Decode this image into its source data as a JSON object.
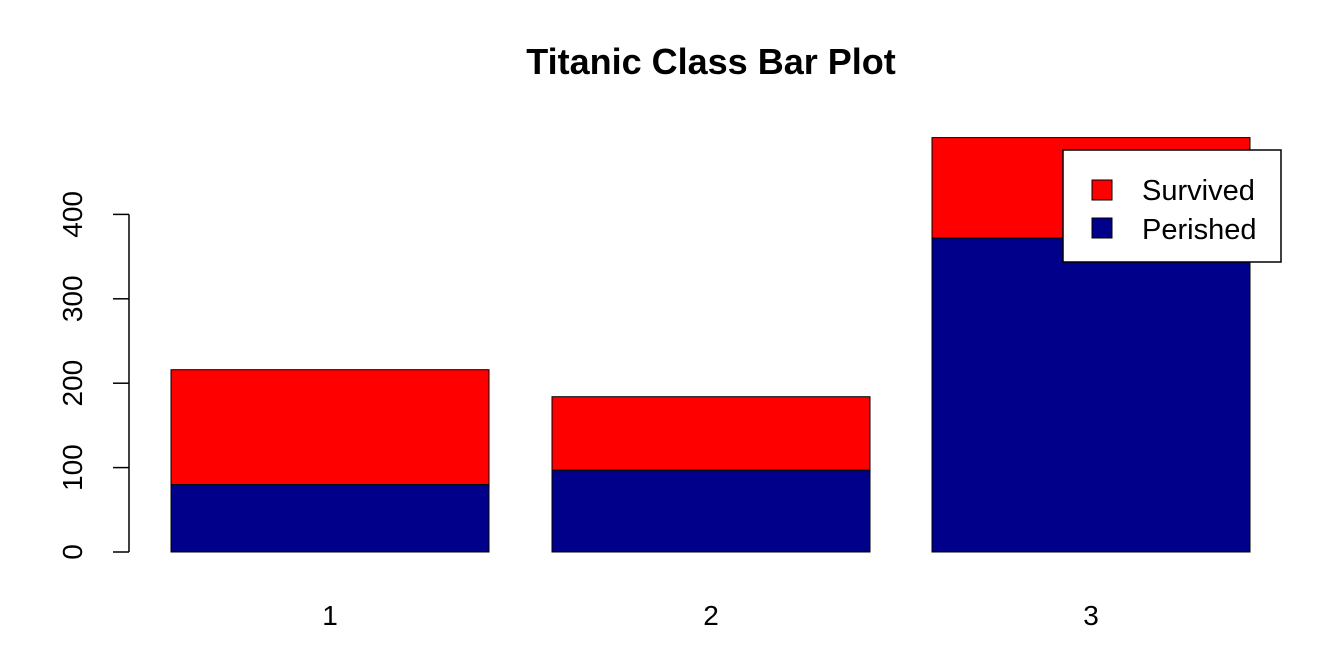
{
  "chart_data": {
    "type": "bar",
    "stacked": true,
    "title": "Titanic Class Bar Plot",
    "xlabel": "",
    "ylabel": "",
    "categories": [
      "1",
      "2",
      "3"
    ],
    "series": [
      {
        "name": "Perished",
        "values": [
          80,
          97,
          372
        ],
        "color": "#00008B"
      },
      {
        "name": "Survived",
        "values": [
          136,
          87,
          119
        ],
        "color": "#FF0000"
      }
    ],
    "ylim": [
      0,
      491
    ],
    "yticks": [
      "0",
      "100",
      "200",
      "300",
      "400"
    ],
    "grid": false,
    "legend": {
      "placement": "top-right",
      "entries": [
        "Survived",
        "Perished"
      ]
    }
  }
}
